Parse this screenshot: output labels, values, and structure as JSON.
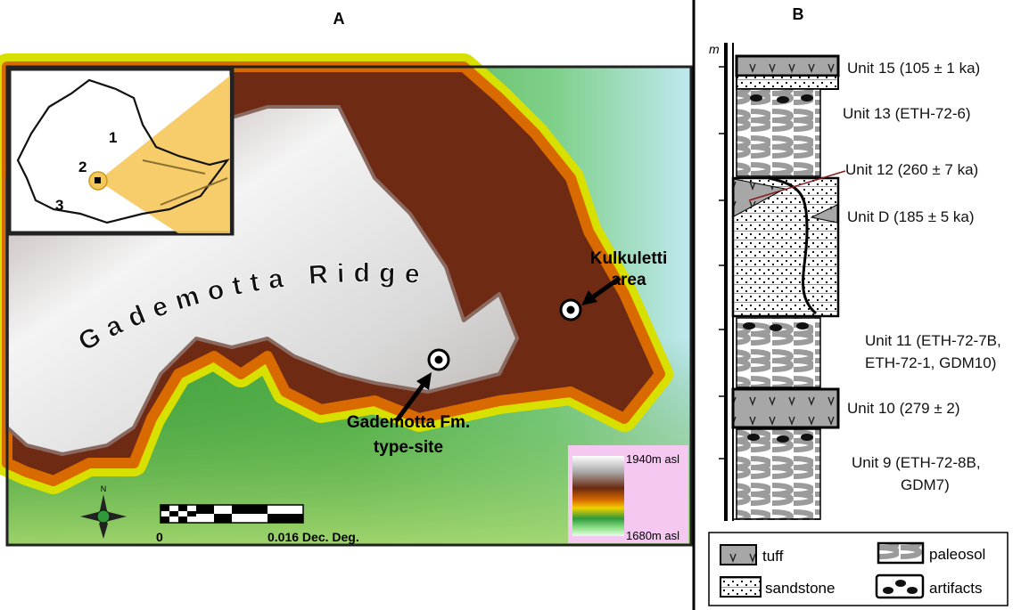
{
  "panel_a": {
    "label": "A",
    "inset": {
      "labels": [
        "1",
        "2",
        "3"
      ]
    },
    "ridge_label": "Gademotta Ridge",
    "sites": [
      {
        "label": [
          "Kulkuletti",
          "area"
        ]
      },
      {
        "label": [
          "Gademotta Fm.",
          "type-site"
        ]
      }
    ],
    "scale_bar": {
      "start": "0",
      "end": "0.016 Dec. Deg."
    },
    "north": "N",
    "elevation_legend": {
      "max": "1940m asl",
      "min": "1680m asl"
    }
  },
  "panel_b": {
    "label": "B",
    "unit_axis": "m",
    "units": [
      {
        "lines": [
          "Unit 15  (105 ± 1 ka)"
        ]
      },
      {
        "lines": [
          "Unit 13 (ETH-72-6)"
        ]
      },
      {
        "lines": [
          "Unit 12  (260 ± 7 ka)"
        ]
      },
      {
        "lines": [
          "Unit D  (185 ± 5 ka)"
        ]
      },
      {
        "lines": [
          "Unit 11 (ETH-72-7B,",
          "ETH-72-1, GDM10)"
        ]
      },
      {
        "lines": [
          "Unit 10 (279 ± 2)"
        ]
      },
      {
        "lines": [
          "Unit 9 (ETH-72-8B,",
          "GDM7)"
        ]
      }
    ],
    "legend": [
      "tuff",
      "paleosol",
      "sandstone",
      "artifacts"
    ]
  }
}
